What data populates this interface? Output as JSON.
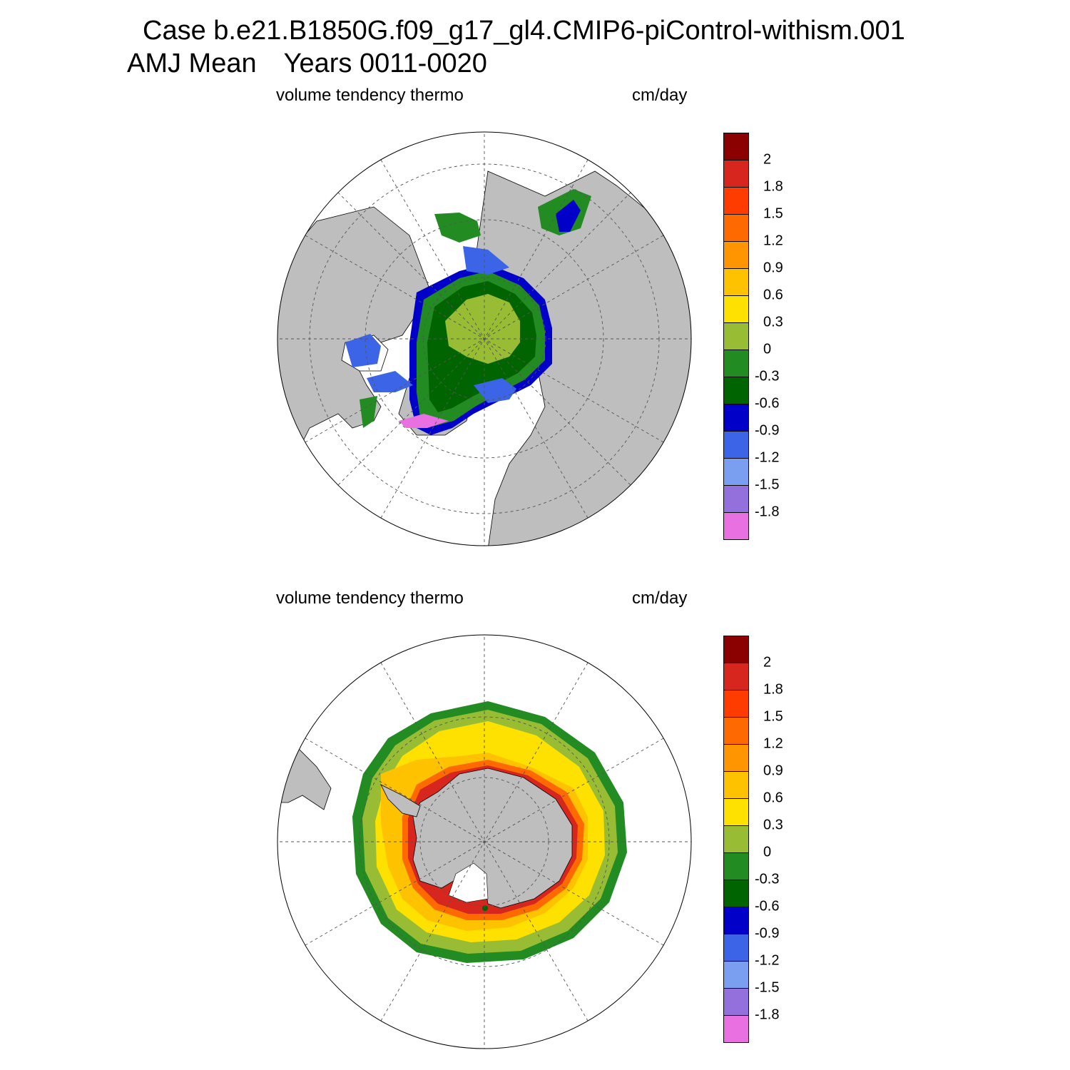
{
  "header": {
    "case_line": "Case b.e21.B1850G.f09_g17_gl4.CMIP6-piControl-withism.001",
    "season": "AMJ Mean",
    "years": "Years 0011-0020"
  },
  "panels": [
    {
      "variable": "volume tendency thermo",
      "units": "cm/day",
      "hemisphere": "north"
    },
    {
      "variable": "volume tendency thermo",
      "units": "cm/day",
      "hemisphere": "south"
    }
  ],
  "colorbar": {
    "colors": [
      "#8b0000",
      "#d7261e",
      "#ff3c00",
      "#ff6a00",
      "#ff9500",
      "#ffc200",
      "#ffe100",
      "#98bd35",
      "#228b22",
      "#006400",
      "#0000c8",
      "#3c64e6",
      "#7a9ff0",
      "#9370db",
      "#e870e0"
    ],
    "tick_labels": [
      "2",
      "1.8",
      "1.5",
      "1.2",
      "0.9",
      "0.6",
      "0.3",
      "0",
      "-0.3",
      "-0.6",
      "-0.9",
      "-1.2",
      "-1.5",
      "-1.8"
    ]
  },
  "map_colors": {
    "land": "#bebebe",
    "ocean": "#ffffff",
    "grid": "#555555"
  }
}
